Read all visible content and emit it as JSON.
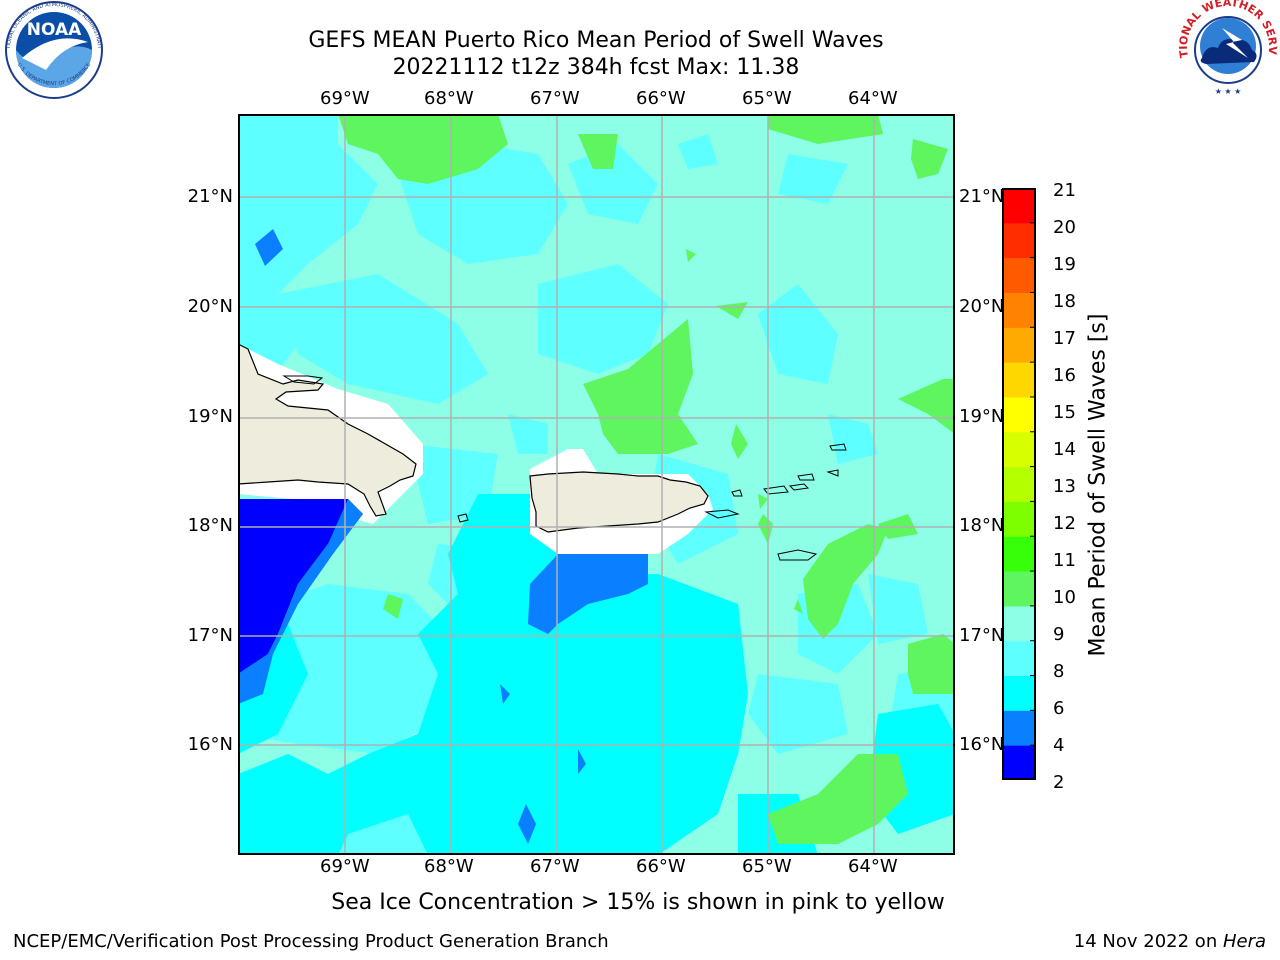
{
  "title": {
    "line1": "GEFS MEAN Puerto Rico Mean Period of Swell Waves",
    "line2": "20221112 t12z 384h fcst   Max: 11.38"
  },
  "map": {
    "lon_labels": [
      "69°W",
      "68°W",
      "67°W",
      "66°W",
      "65°W",
      "64°W"
    ],
    "lat_labels": [
      "21°N",
      "20°N",
      "19°N",
      "18°N",
      "17°N",
      "16°N"
    ],
    "land_color": "#eeecdc",
    "grid_color": "#b0b0b0"
  },
  "colorbar": {
    "label": "Mean Period of Swell Waves [s]",
    "ticks": [
      "21",
      "20",
      "19",
      "18",
      "17",
      "16",
      "15",
      "14",
      "13",
      "12",
      "11",
      "10",
      "9",
      "8",
      "6",
      "4",
      "2"
    ],
    "colors": [
      "#0000ff",
      "#0a7fff",
      "#00ffff",
      "#5effff",
      "#8cffe6",
      "#5ef55e",
      "#37ff0a",
      "#7dff00",
      "#b4ff00",
      "#d7ff00",
      "#ffff00",
      "#ffd700",
      "#ffaa00",
      "#ff8200",
      "#ff5a00",
      "#ff2d00",
      "#ff0000"
    ]
  },
  "annotation": "Sea Ice Concentration > 15% is shown in pink to yellow",
  "footer": {
    "left": "NCEP/EMC/Verification Post Processing Product Generation Branch",
    "date": "14 Nov 2022 on ",
    "machine": "Hera"
  },
  "logos": {
    "noaa_text": "NOAA",
    "noaa_ring_top": "NATIONAL OCEANIC AND ATMOSPHERIC ADMINISTRATION",
    "noaa_ring_bottom": "U.S. DEPARTMENT OF COMMERCE",
    "nws_ring": "NATIONAL WEATHER SERVICE"
  }
}
